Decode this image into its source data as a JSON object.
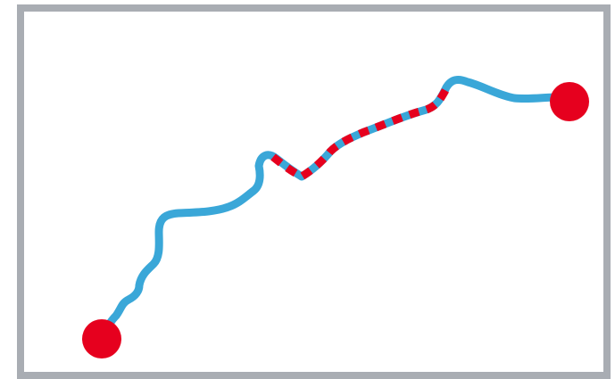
{
  "diagram": {
    "colors": {
      "frame": "#a9adb3",
      "route": "#3aa7d8",
      "highlight": "#e6001e",
      "endpoint": "#e6001e",
      "background": "#ffffff"
    },
    "route_segments": [
      "route-line",
      "highlighted-segment"
    ],
    "endpoints": [
      "start-point",
      "end-point"
    ]
  }
}
